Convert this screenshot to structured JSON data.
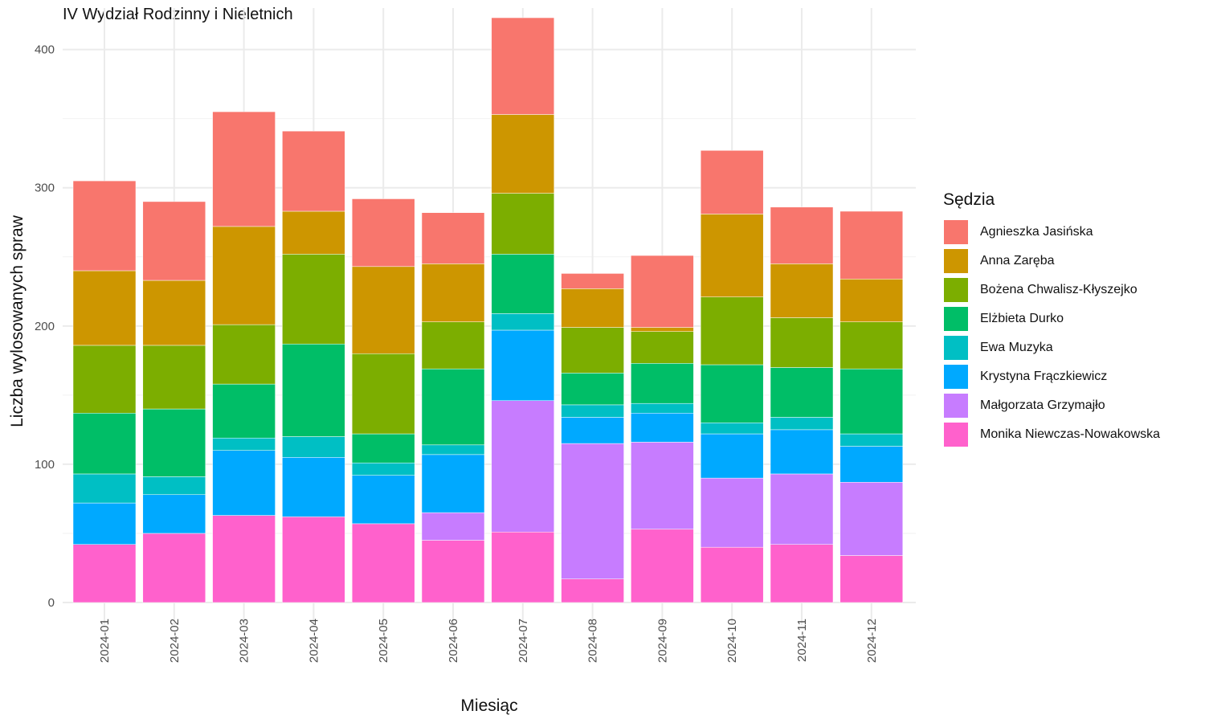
{
  "chart_data": {
    "type": "bar",
    "stacked": true,
    "title": "IV Wydział Rodzinny i Nieletnich",
    "xlabel": "Miesiąc",
    "ylabel": "Liczba wylosowanych spraw",
    "ylim": [
      0,
      430
    ],
    "yticks": [
      0,
      100,
      200,
      300,
      400
    ],
    "grid": true,
    "legend_position": "right",
    "legend_title": "Sędzia",
    "categories": [
      "2024-01",
      "2024-02",
      "2024-03",
      "2024-04",
      "2024-05",
      "2024-06",
      "2024-07",
      "2024-08",
      "2024-09",
      "2024-10",
      "2024-11",
      "2024-12"
    ],
    "series": [
      {
        "name": "Monika Niewczas-Nowakowska",
        "color": "#FF61CC",
        "values": [
          42,
          50,
          63,
          62,
          57,
          45,
          51,
          17,
          53,
          40,
          42,
          34
        ]
      },
      {
        "name": "Małgorzata Grzymajło",
        "color": "#C77CFF",
        "values": [
          0,
          0,
          0,
          0,
          0,
          20,
          95,
          98,
          63,
          50,
          51,
          53
        ]
      },
      {
        "name": "Krystyna Frączkiewicz",
        "color": "#00A9FF",
        "values": [
          30,
          28,
          47,
          43,
          35,
          42,
          51,
          19,
          21,
          32,
          32,
          26
        ]
      },
      {
        "name": "Ewa Muzyka",
        "color": "#00BFC4",
        "values": [
          21,
          13,
          9,
          15,
          9,
          7,
          12,
          9,
          7,
          8,
          9,
          9
        ]
      },
      {
        "name": "Elżbieta Durko",
        "color": "#00BE67",
        "values": [
          44,
          49,
          39,
          67,
          21,
          55,
          43,
          23,
          29,
          42,
          36,
          47
        ]
      },
      {
        "name": "Bożena Chwalisz-Kłyszejko",
        "color": "#7CAE00",
        "values": [
          49,
          46,
          43,
          65,
          58,
          34,
          44,
          33,
          23,
          49,
          36,
          34
        ]
      },
      {
        "name": "Anna Zaręba",
        "color": "#CD9600",
        "values": [
          54,
          47,
          71,
          31,
          63,
          42,
          57,
          28,
          3,
          60,
          39,
          31
        ]
      },
      {
        "name": "Agnieszka Jasińska",
        "color": "#F8766D",
        "values": [
          65,
          57,
          83,
          58,
          49,
          37,
          70,
          11,
          52,
          46,
          41,
          49
        ]
      }
    ],
    "legend_order": [
      "Agnieszka Jasińska",
      "Anna Zaręba",
      "Bożena Chwalisz-Kłyszejko",
      "Elżbieta Durko",
      "Ewa Muzyka",
      "Krystyna Frączkiewicz",
      "Małgorzata Grzymajło",
      "Monika Niewczas-Nowakowska"
    ]
  }
}
